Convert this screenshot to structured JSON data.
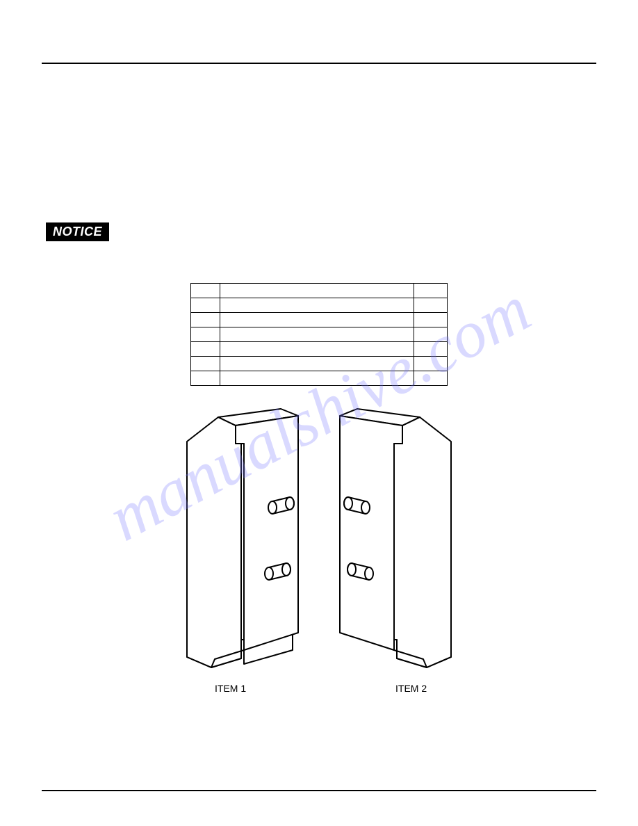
{
  "notice": {
    "label": "NOTICE"
  },
  "watermark": {
    "text": "manualshive.com"
  },
  "table": {
    "rows": 7,
    "cols": 3
  },
  "figure": {
    "item1_label": "ITEM 1",
    "item2_label": "ITEM 2",
    "stroke": "#000000",
    "stroke_width": 2
  }
}
